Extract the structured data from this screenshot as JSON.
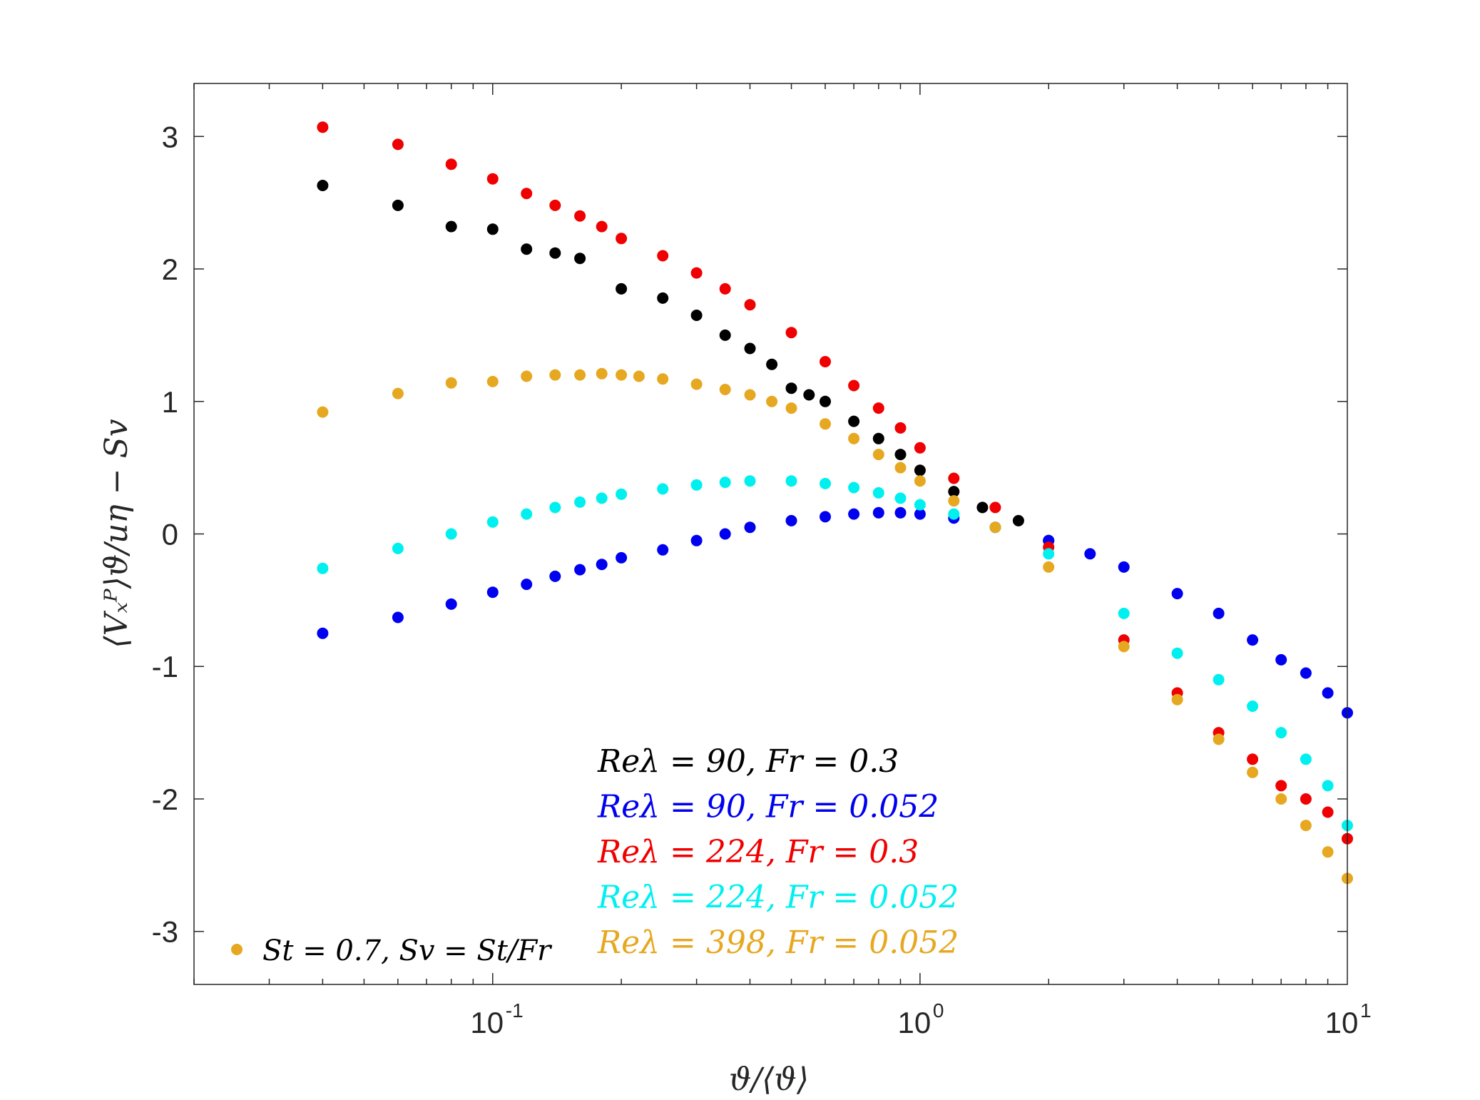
{
  "chart_data": {
    "type": "scatter",
    "xscale": "log",
    "xlim": [
      0.02,
      10
    ],
    "ylim": [
      -3.4,
      3.4
    ],
    "xticks": [
      0.1,
      1,
      10
    ],
    "xtick_labels": [
      {
        "base": "10",
        "exp": "-1"
      },
      {
        "base": "10",
        "exp": "0"
      },
      {
        "base": "10",
        "exp": "1"
      }
    ],
    "yticks": [
      -3,
      -2,
      -1,
      0,
      1,
      2,
      3
    ],
    "ytick_labels": [
      "-3",
      "-2",
      "-1",
      "0",
      "1",
      "2",
      "3"
    ],
    "xlabel": "ϑ/⟨ϑ⟩",
    "ylabel": "⟨Vₓᴾ⟩ϑ/uη − Sv",
    "grid": false,
    "legend_position": "bottom-center",
    "annotation": {
      "text": "St = 0.7, Sv = St/Fr",
      "marker_color": "#E6A820"
    },
    "series": [
      {
        "name": "Reλ = 90, Fr = 0.3",
        "color": "#000000",
        "x": [
          0.04,
          0.06,
          0.08,
          0.1,
          0.12,
          0.14,
          0.16,
          0.2,
          0.25,
          0.3,
          0.35,
          0.4,
          0.45,
          0.5,
          0.55,
          0.6,
          0.7,
          0.8,
          0.9,
          1.0,
          1.2,
          1.4,
          1.7,
          2.0
        ],
        "y": [
          2.63,
          2.48,
          2.32,
          2.3,
          2.15,
          2.12,
          2.08,
          1.85,
          1.78,
          1.65,
          1.5,
          1.4,
          1.28,
          1.1,
          1.05,
          1.0,
          0.85,
          0.72,
          0.6,
          0.48,
          0.32,
          0.2,
          0.1,
          -0.05
        ]
      },
      {
        "name": "Reλ = 90, Fr = 0.052",
        "color": "#0000F0",
        "x": [
          0.04,
          0.06,
          0.08,
          0.1,
          0.12,
          0.14,
          0.16,
          0.18,
          0.2,
          0.25,
          0.3,
          0.35,
          0.4,
          0.5,
          0.6,
          0.7,
          0.8,
          0.9,
          1.0,
          1.2,
          1.5,
          2.0,
          2.5,
          3.0,
          4.0,
          5.0,
          6.0,
          7.0,
          8.0,
          9.0,
          10.0
        ],
        "y": [
          -0.75,
          -0.63,
          -0.53,
          -0.44,
          -0.38,
          -0.32,
          -0.27,
          -0.23,
          -0.18,
          -0.12,
          -0.05,
          0.0,
          0.05,
          0.1,
          0.13,
          0.15,
          0.16,
          0.16,
          0.15,
          0.12,
          0.05,
          -0.05,
          -0.15,
          -0.25,
          -0.45,
          -0.6,
          -0.8,
          -0.95,
          -1.05,
          -1.2,
          -1.35
        ]
      },
      {
        "name": "Reλ = 224, Fr = 0.3",
        "color": "#F00000",
        "x": [
          0.04,
          0.06,
          0.08,
          0.1,
          0.12,
          0.14,
          0.16,
          0.18,
          0.2,
          0.25,
          0.3,
          0.35,
          0.4,
          0.5,
          0.6,
          0.7,
          0.8,
          0.9,
          1.0,
          1.2,
          1.5,
          2.0,
          3.0,
          4.0,
          5.0,
          6.0,
          7.0,
          8.0,
          9.0,
          10.0
        ],
        "y": [
          3.07,
          2.94,
          2.79,
          2.68,
          2.57,
          2.48,
          2.4,
          2.32,
          2.23,
          2.1,
          1.97,
          1.85,
          1.73,
          1.52,
          1.3,
          1.12,
          0.95,
          0.8,
          0.65,
          0.42,
          0.2,
          -0.1,
          -0.8,
          -1.2,
          -1.5,
          -1.7,
          -1.9,
          -2.0,
          -2.1,
          -2.3
        ]
      },
      {
        "name": "Reλ = 224, Fr = 0.052",
        "color": "#00F0F0",
        "x": [
          0.04,
          0.06,
          0.08,
          0.1,
          0.12,
          0.14,
          0.16,
          0.18,
          0.2,
          0.25,
          0.3,
          0.35,
          0.4,
          0.5,
          0.6,
          0.7,
          0.8,
          0.9,
          1.0,
          1.2,
          1.5,
          2.0,
          3.0,
          4.0,
          5.0,
          6.0,
          7.0,
          8.0,
          9.0,
          10.0
        ],
        "y": [
          -0.26,
          -0.11,
          0.0,
          0.09,
          0.15,
          0.2,
          0.24,
          0.27,
          0.3,
          0.34,
          0.37,
          0.39,
          0.4,
          0.4,
          0.38,
          0.35,
          0.31,
          0.27,
          0.22,
          0.15,
          0.05,
          -0.15,
          -0.6,
          -0.9,
          -1.1,
          -1.3,
          -1.5,
          -1.7,
          -1.9,
          -2.2
        ]
      },
      {
        "name": "Reλ = 398, Fr = 0.052",
        "color": "#E6A820",
        "x": [
          0.04,
          0.06,
          0.08,
          0.1,
          0.12,
          0.14,
          0.16,
          0.18,
          0.2,
          0.22,
          0.25,
          0.3,
          0.35,
          0.4,
          0.45,
          0.5,
          0.6,
          0.7,
          0.8,
          0.9,
          1.0,
          1.2,
          1.5,
          2.0,
          3.0,
          4.0,
          5.0,
          6.0,
          7.0,
          8.0,
          9.0,
          10.0
        ],
        "y": [
          0.92,
          1.06,
          1.14,
          1.15,
          1.19,
          1.2,
          1.2,
          1.21,
          1.2,
          1.19,
          1.17,
          1.13,
          1.09,
          1.05,
          1.0,
          0.95,
          0.83,
          0.72,
          0.6,
          0.5,
          0.4,
          0.25,
          0.05,
          -0.25,
          -0.85,
          -1.25,
          -1.55,
          -1.8,
          -2.0,
          -2.2,
          -2.4,
          -2.6
        ]
      }
    ]
  }
}
